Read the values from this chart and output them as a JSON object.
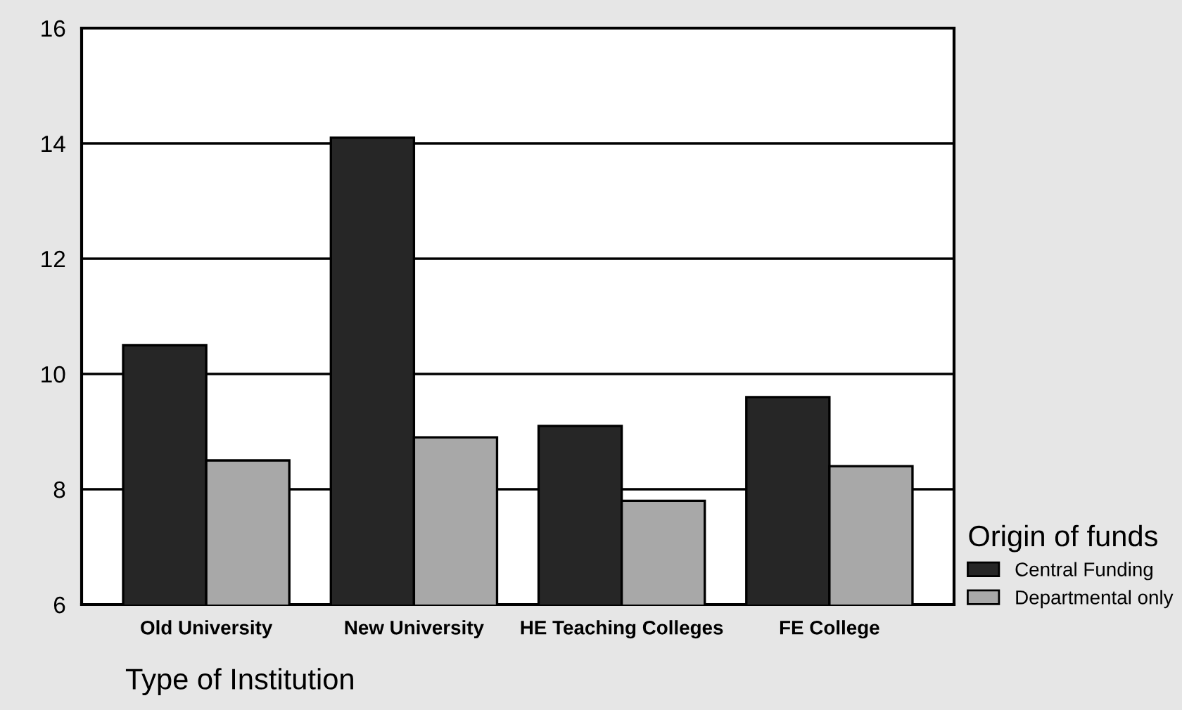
{
  "chart_data": {
    "type": "bar",
    "xlabel": "Type of Institution",
    "legend_title": "Origin of funds",
    "categories": [
      "Old University",
      "New University",
      "HE Teaching Colleges",
      "FE College"
    ],
    "series": [
      {
        "name": "Central Funding",
        "color": "#262626",
        "values": [
          10.5,
          14.1,
          9.1,
          9.6
        ]
      },
      {
        "name": "Departmental only",
        "color": "#a8a8a8",
        "values": [
          8.5,
          8.9,
          7.8,
          8.4
        ]
      }
    ],
    "ylim": [
      6,
      16
    ],
    "yticks": [
      6,
      8,
      10,
      12,
      14,
      16
    ],
    "grid": "y",
    "legend": "bottom right"
  }
}
